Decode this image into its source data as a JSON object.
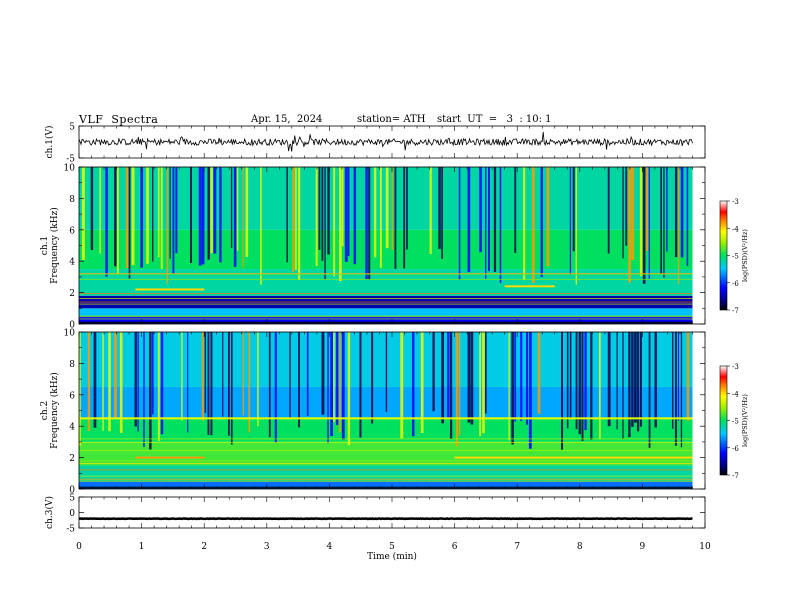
{
  "header": {
    "title": "VLF  Spectra",
    "date": "Apr. 15,  2024",
    "station": "station= ATH",
    "start": "start  UT  =   3  : 10: 1"
  },
  "chart_data": [
    {
      "type": "line",
      "panel": "ch.1 waveform",
      "ylabel": "ch.1(V)",
      "ylim": [
        -5,
        5
      ],
      "yticks": [
        "5",
        "-5"
      ],
      "xlim": [
        0,
        10
      ],
      "trace": {
        "mean": 0,
        "approx_amplitude": 2,
        "x_end": 9.8
      }
    },
    {
      "type": "heatmap",
      "panel": "ch.1 spectrogram",
      "ylabel": "ch.1\nFrequency (kHz)",
      "ylim": [
        0,
        10
      ],
      "yticks": [
        "0",
        "2",
        "4",
        "6",
        "8",
        "10"
      ],
      "xlim": [
        0,
        10
      ],
      "x_end": 9.8,
      "bands_khz": [
        {
          "from": 0,
          "to": 0.5,
          "logpsd": -6.2
        },
        {
          "from": 0.5,
          "to": 1.0,
          "logpsd": -5.5
        },
        {
          "from": 1.0,
          "to": 1.8,
          "logpsd": -6.5
        },
        {
          "from": 1.8,
          "to": 3.5,
          "logpsd": -5.2
        },
        {
          "from": 3.5,
          "to": 6.0,
          "logpsd": -5.0
        },
        {
          "from": 6.0,
          "to": 10.0,
          "logpsd": -5.2
        }
      ],
      "features": [
        {
          "kind": "tone",
          "freq_khz": 2.2,
          "from_min": 0.9,
          "to_min": 2.0,
          "logpsd": -4.0
        },
        {
          "kind": "tone",
          "freq_khz": 2.4,
          "from_min": 6.8,
          "to_min": 7.6,
          "logpsd": -4.0
        }
      ],
      "colorbar": {
        "label": "log(PSD)(V²/Hz)",
        "range": [
          -7,
          -3
        ],
        "ticks": [
          "-3",
          "-4",
          "-5",
          "-6",
          "-7"
        ]
      }
    },
    {
      "type": "heatmap",
      "panel": "ch.2 spectrogram",
      "ylabel": "ch.2\nFrequency (kHz)",
      "ylim": [
        0,
        10
      ],
      "yticks": [
        "0",
        "2",
        "4",
        "6",
        "8",
        "10"
      ],
      "xlim": [
        0,
        10
      ],
      "x_end": 9.8,
      "bands_khz": [
        {
          "from": 0,
          "to": 0.5,
          "logpsd": -5.8
        },
        {
          "from": 0.5,
          "to": 1.5,
          "logpsd": -5.2
        },
        {
          "from": 1.5,
          "to": 3.0,
          "logpsd": -4.8
        },
        {
          "from": 3.0,
          "to": 4.5,
          "logpsd": -5.0
        },
        {
          "from": 4.5,
          "to": 6.5,
          "logpsd": -5.6
        },
        {
          "from": 6.5,
          "to": 10.0,
          "logpsd": -5.4
        }
      ],
      "features": [
        {
          "kind": "tone",
          "freq_khz": 2.0,
          "from_min": 0.9,
          "to_min": 2.0,
          "logpsd": -3.8
        },
        {
          "kind": "tone",
          "freq_khz": 2.0,
          "from_min": 6.0,
          "to_min": 9.8,
          "logpsd": -4.0
        },
        {
          "kind": "tone",
          "freq_khz": 4.5,
          "from_min": 0,
          "to_min": 9.8,
          "logpsd": -4.2
        }
      ],
      "colorbar": {
        "label": "log(PSD)(V²/Hz)",
        "range": [
          -7,
          -3
        ],
        "ticks": [
          "-3",
          "-4",
          "-5",
          "-6",
          "-7"
        ]
      }
    },
    {
      "type": "line",
      "panel": "ch.3 waveform",
      "ylabel": "ch.3(V)",
      "ylim": [
        -5,
        5
      ],
      "yticks": [
        "5",
        "0",
        "-5"
      ],
      "xlim": [
        0,
        10
      ],
      "trace": {
        "mean": -2,
        "approx_amplitude": 0.15,
        "x_end": 9.8
      }
    }
  ],
  "xaxis": {
    "label": "Time  (min)",
    "ticks": [
      "0",
      "1",
      "2",
      "3",
      "4",
      "5",
      "6",
      "7",
      "8",
      "9",
      "10"
    ]
  }
}
